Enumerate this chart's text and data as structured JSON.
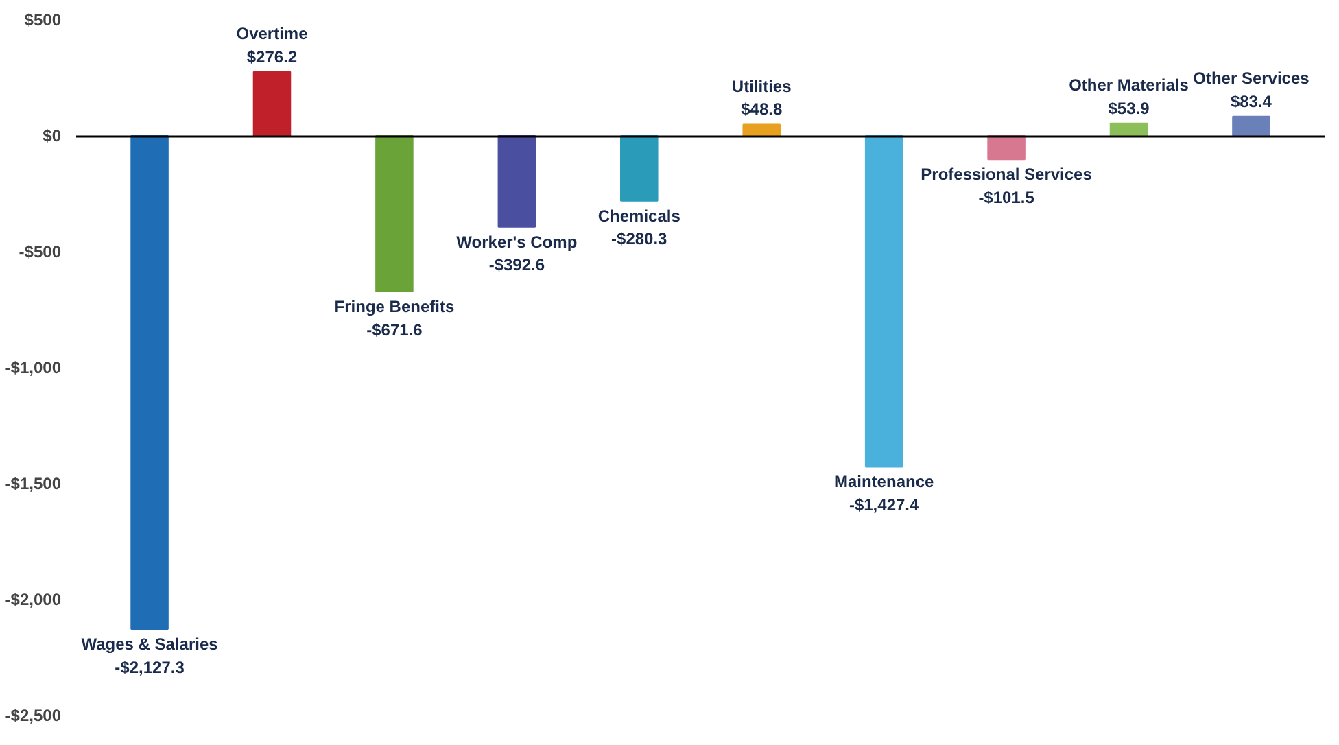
{
  "chart_data": {
    "type": "bar",
    "categories": [
      "Wages & Salaries",
      "Overtime",
      "Fringe Benefits",
      "Worker's Comp",
      "Chemicals",
      "Utilities",
      "Maintenance",
      "Professional Services",
      "Other Materials",
      "Other Services"
    ],
    "values": [
      -2127.3,
      276.2,
      -671.6,
      -392.6,
      -280.3,
      48.8,
      -1427.4,
      -101.5,
      53.9,
      83.4
    ],
    "colors": [
      "#1f6db5",
      "#c0202a",
      "#6aa338",
      "#4a4fa0",
      "#2a9bb8",
      "#e8a020",
      "#4ab0dc",
      "#d87890",
      "#8cbf5a",
      "#6a80b8"
    ],
    "value_labels": [
      "-$2,127.3",
      "$276.2",
      "-$671.6",
      "-$392.6",
      "-$280.3",
      "$48.8",
      "-$1,427.4",
      "-$101.5",
      "$53.9",
      "$83.4"
    ],
    "ylim": [
      -2500,
      500
    ],
    "yticks": [
      {
        "value": 500,
        "label": "$500"
      },
      {
        "value": 0,
        "label": "$0"
      },
      {
        "value": -500,
        "label": "-$500"
      },
      {
        "value": -1000,
        "label": "-$1,000"
      },
      {
        "value": -1500,
        "label": "-$1,500"
      },
      {
        "value": -2000,
        "label": "-$2,000"
      },
      {
        "value": -2500,
        "label": "-$2,500"
      }
    ],
    "grid": false
  }
}
